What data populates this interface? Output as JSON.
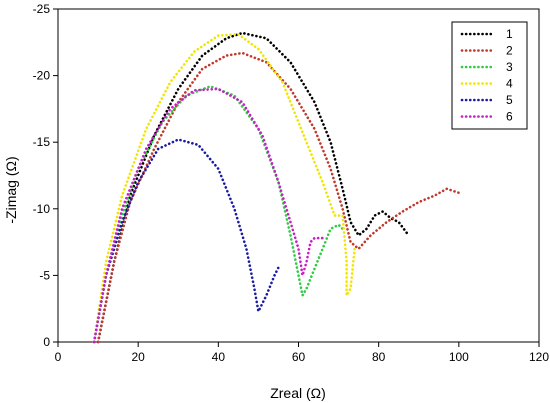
{
  "chart_data": {
    "type": "scatter",
    "title": "",
    "xlabel": "Zreal (Ω)",
    "ylabel": "-Zimag (Ω)",
    "xlim": [
      0,
      120
    ],
    "ylim": [
      0,
      -25
    ],
    "y_axis_inverted": true,
    "x_ticks": [
      0,
      20,
      40,
      60,
      80,
      100,
      120
    ],
    "y_ticks": [
      0,
      -5,
      -10,
      -15,
      -20,
      -25
    ],
    "grid": false,
    "legend_position": "top-right",
    "marker_style": "dotted",
    "series": [
      {
        "name": "1",
        "color": "#000000",
        "points": [
          [
            10,
            0
          ],
          [
            14,
            -6
          ],
          [
            18,
            -11
          ],
          [
            24,
            -15.5
          ],
          [
            30,
            -19
          ],
          [
            36,
            -21.5
          ],
          [
            42,
            -22.8
          ],
          [
            46,
            -23.2
          ],
          [
            52,
            -22.8
          ],
          [
            58,
            -21
          ],
          [
            64,
            -18
          ],
          [
            68,
            -15
          ],
          [
            71,
            -11.5
          ],
          [
            73,
            -9
          ],
          [
            75,
            -8
          ],
          [
            77,
            -8.5
          ],
          [
            79,
            -9.5
          ],
          [
            81,
            -9.8
          ],
          [
            83,
            -9.3
          ],
          [
            85,
            -9
          ],
          [
            87,
            -8.2
          ]
        ]
      },
      {
        "name": "2",
        "color": "#c0392b",
        "points": [
          [
            10,
            0
          ],
          [
            14,
            -6
          ],
          [
            18,
            -10.5
          ],
          [
            24,
            -14.5
          ],
          [
            30,
            -18
          ],
          [
            36,
            -20.5
          ],
          [
            42,
            -21.5
          ],
          [
            46,
            -21.7
          ],
          [
            52,
            -21
          ],
          [
            58,
            -19
          ],
          [
            64,
            -16
          ],
          [
            68,
            -13
          ],
          [
            71,
            -10
          ],
          [
            73,
            -7.5
          ],
          [
            75,
            -7
          ],
          [
            78,
            -8
          ],
          [
            82,
            -9
          ],
          [
            86,
            -9.8
          ],
          [
            90,
            -10.5
          ],
          [
            94,
            -11
          ],
          [
            97,
            -11.5
          ],
          [
            100,
            -11.2
          ]
        ]
      },
      {
        "name": "3",
        "color": "#2ecc40",
        "points": [
          [
            9,
            0
          ],
          [
            12,
            -5
          ],
          [
            16,
            -9.5
          ],
          [
            20,
            -13
          ],
          [
            26,
            -16.5
          ],
          [
            32,
            -18.5
          ],
          [
            38,
            -19.2
          ],
          [
            44,
            -18.5
          ],
          [
            50,
            -16
          ],
          [
            55,
            -12
          ],
          [
            58,
            -8
          ],
          [
            60,
            -5
          ],
          [
            61,
            -3.5
          ],
          [
            62,
            -4
          ],
          [
            64,
            -5.5
          ],
          [
            66,
            -7
          ],
          [
            68,
            -8.5
          ],
          [
            70,
            -8.8
          ],
          [
            71,
            -8.5
          ]
        ]
      },
      {
        "name": "4",
        "color": "#f1e500",
        "points": [
          [
            9,
            0
          ],
          [
            12,
            -6
          ],
          [
            16,
            -11
          ],
          [
            22,
            -16
          ],
          [
            28,
            -19.5
          ],
          [
            34,
            -21.8
          ],
          [
            40,
            -23
          ],
          [
            45,
            -23.1
          ],
          [
            50,
            -22
          ],
          [
            56,
            -19.5
          ],
          [
            62,
            -15
          ],
          [
            66,
            -12
          ],
          [
            69,
            -9.5
          ],
          [
            71,
            -9.5
          ],
          [
            72,
            -6
          ],
          [
            72,
            -3.5
          ],
          [
            73,
            -4
          ],
          [
            74,
            -7
          ]
        ]
      },
      {
        "name": "5",
        "color": "#1a1aa6",
        "points": [
          [
            9,
            0
          ],
          [
            12,
            -5
          ],
          [
            16,
            -9
          ],
          [
            20,
            -12
          ],
          [
            25,
            -14.5
          ],
          [
            30,
            -15.2
          ],
          [
            35,
            -14.8
          ],
          [
            40,
            -13
          ],
          [
            44,
            -10
          ],
          [
            47,
            -7
          ],
          [
            49,
            -4
          ],
          [
            50,
            -2.3
          ],
          [
            52,
            -3.5
          ],
          [
            54,
            -5
          ],
          [
            55,
            -5.6
          ]
        ]
      },
      {
        "name": "6",
        "color": "#c71fc7",
        "points": [
          [
            9,
            0
          ],
          [
            12,
            -5
          ],
          [
            16,
            -10
          ],
          [
            22,
            -14.5
          ],
          [
            28,
            -17.5
          ],
          [
            34,
            -18.9
          ],
          [
            40,
            -19
          ],
          [
            46,
            -18
          ],
          [
            51,
            -15.5
          ],
          [
            55,
            -12
          ],
          [
            58,
            -9
          ],
          [
            60,
            -7
          ],
          [
            61,
            -5
          ],
          [
            62,
            -6
          ],
          [
            63,
            -7.5
          ],
          [
            64,
            -7.8
          ],
          [
            66,
            -7.8
          ]
        ]
      }
    ]
  }
}
